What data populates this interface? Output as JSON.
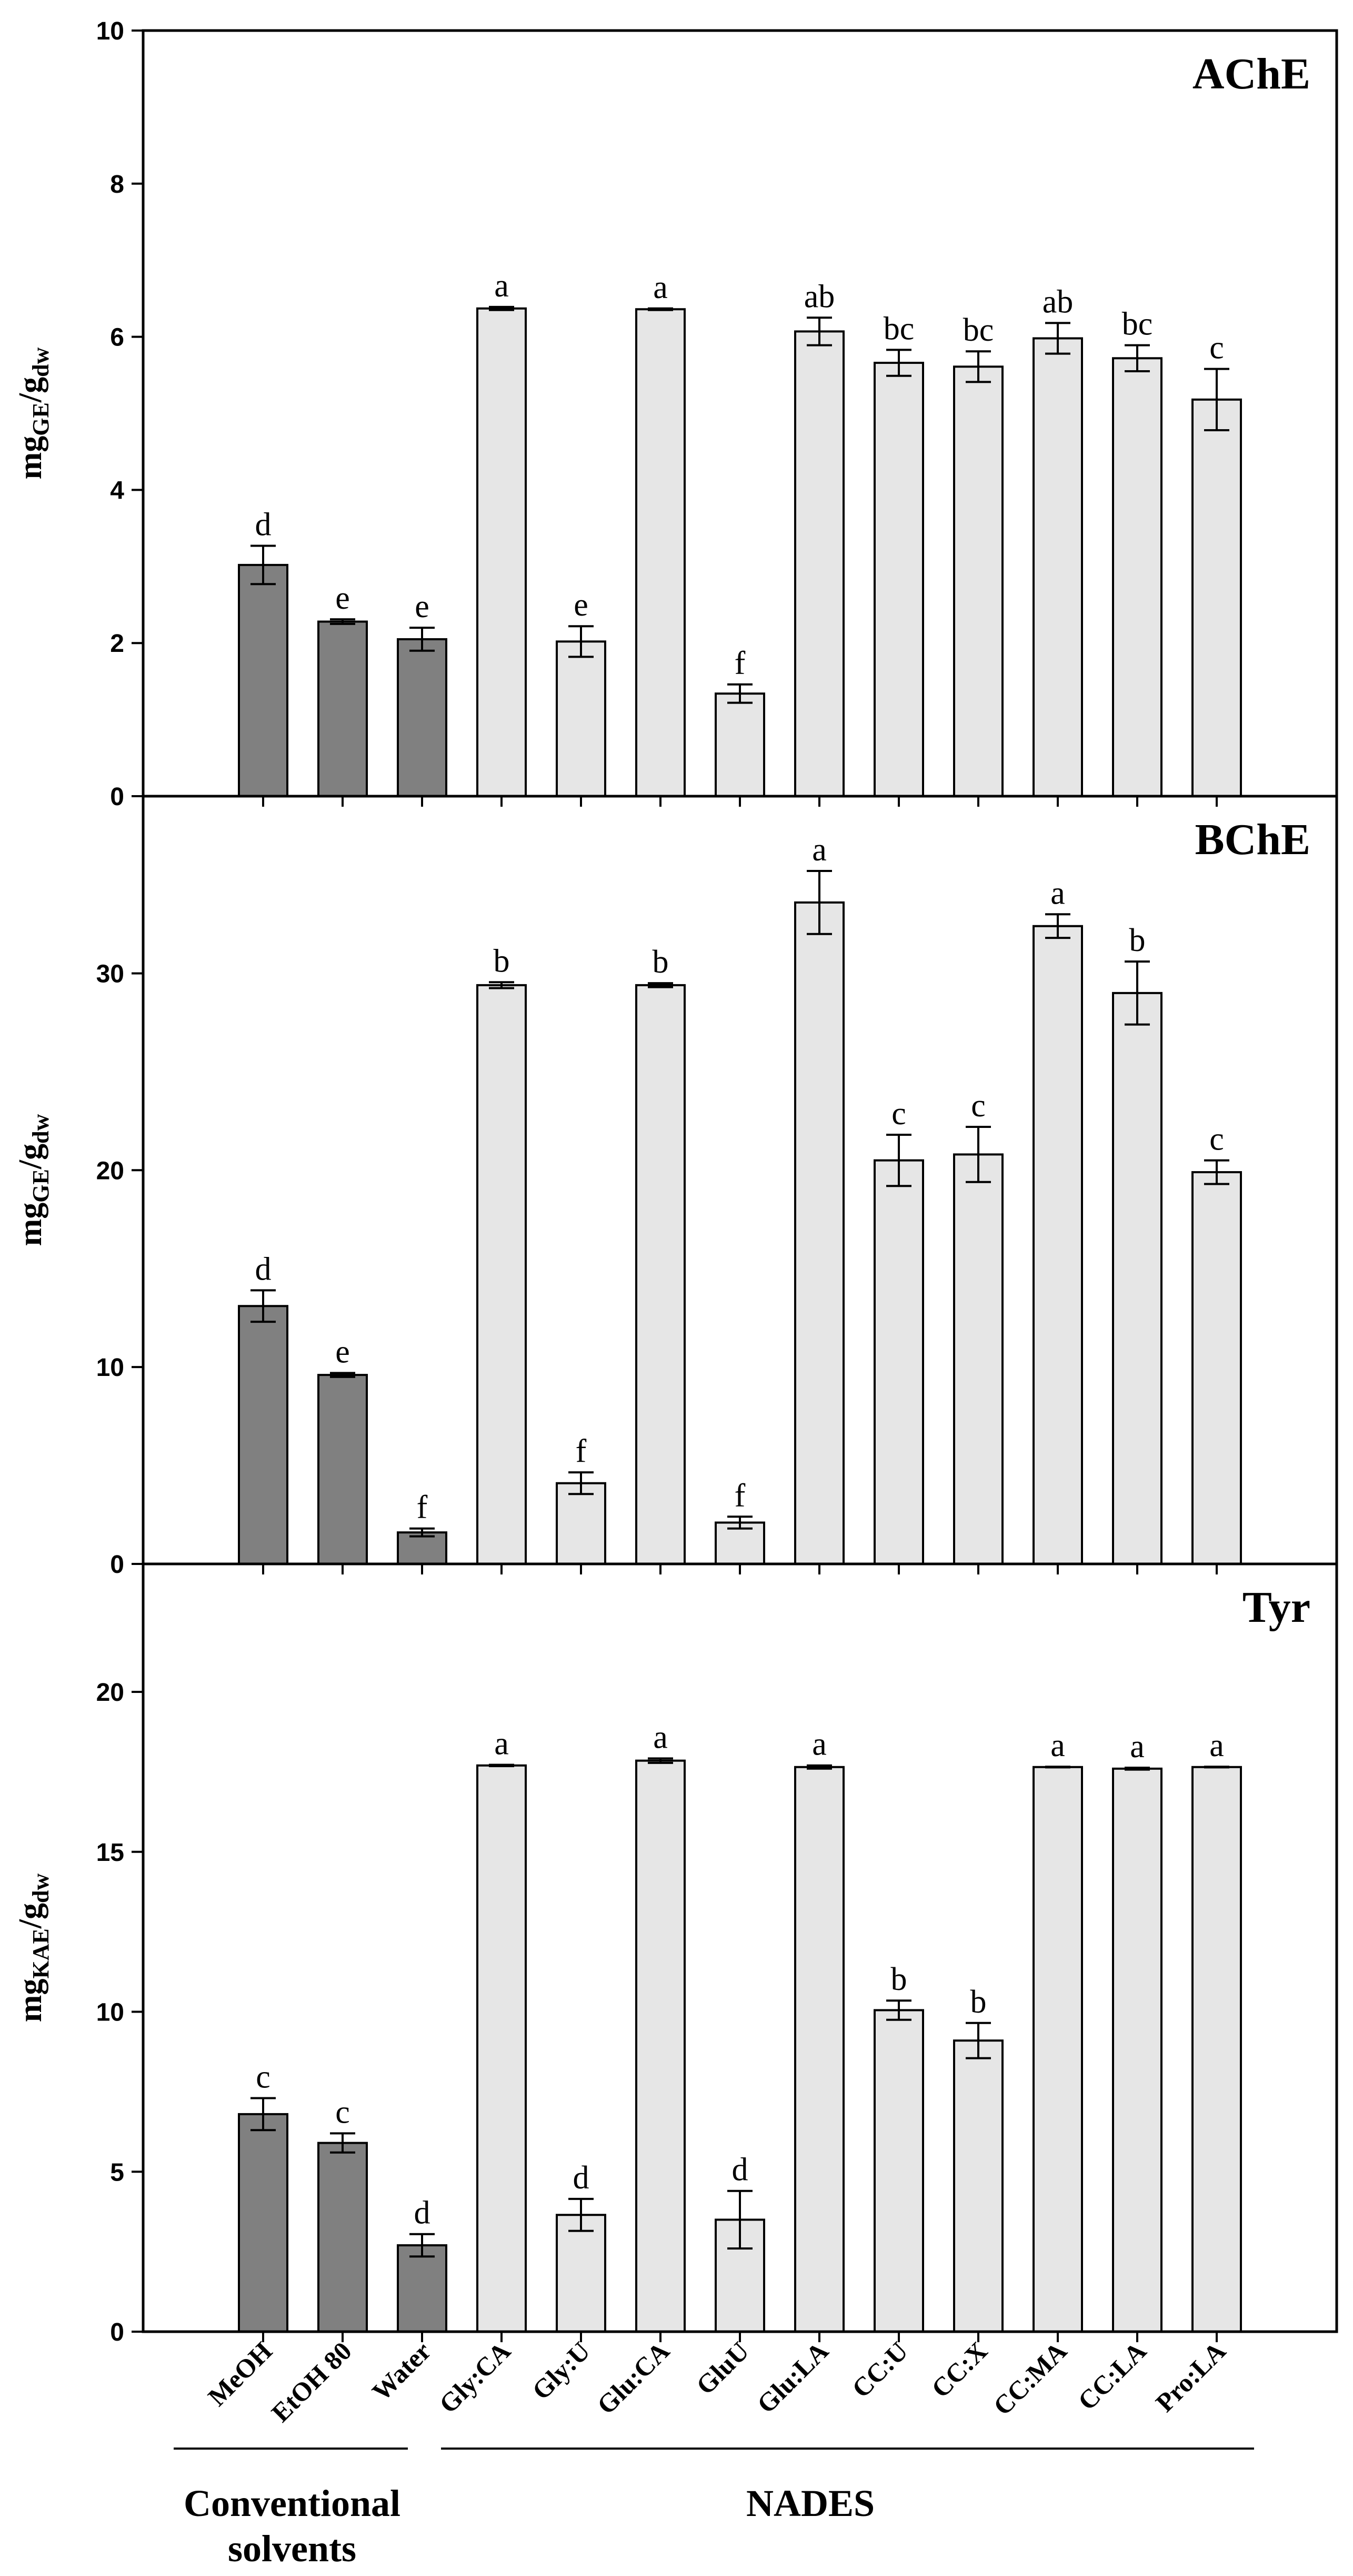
{
  "chart_data": [
    {
      "type": "bar",
      "title": "AChE",
      "ylabel": {
        "main": "mg",
        "sub1": "GE",
        "mid": "/g",
        "sub2": "dw"
      },
      "ylim": [
        0,
        10
      ],
      "yticks": [
        0,
        2,
        4,
        6,
        8,
        10
      ],
      "categories": [
        "MeOH",
        "EtOH 80",
        "Water",
        "Gly:CA",
        "Gly:U",
        "Glu:CA",
        "GluU",
        "Glu:LA",
        "CC:U",
        "CC:X",
        "CC:MA",
        "CC:LA",
        "Pro:LA"
      ],
      "values": [
        3.02,
        2.28,
        2.05,
        6.37,
        2.02,
        6.36,
        1.34,
        6.07,
        5.66,
        5.61,
        5.98,
        5.72,
        5.18
      ],
      "errors": [
        0.25,
        0.03,
        0.15,
        0.02,
        0.2,
        0.01,
        0.12,
        0.18,
        0.17,
        0.2,
        0.2,
        0.17,
        0.4
      ],
      "labels": [
        "d",
        "e",
        "e",
        "a",
        "e",
        "a",
        "f",
        "ab",
        "bc",
        "bc",
        "ab",
        "bc",
        "c"
      ]
    },
    {
      "type": "bar",
      "title": "BChE",
      "ylabel": {
        "main": "mg",
        "sub1": "GE",
        "mid": "/g",
        "sub2": "dw"
      },
      "ylim": [
        0,
        39
      ],
      "yticks": [
        0,
        10,
        20,
        30
      ],
      "categories": [
        "MeOH",
        "EtOH 80",
        "Water",
        "Gly:CA",
        "Gly:U",
        "Glu:CA",
        "GluU",
        "Glu:LA",
        "CC:U",
        "CC:X",
        "CC:MA",
        "CC:LA",
        "Pro:LA"
      ],
      "values": [
        13.1,
        9.6,
        1.6,
        29.4,
        4.1,
        29.4,
        2.1,
        33.6,
        20.5,
        20.8,
        32.4,
        29.0,
        19.9
      ],
      "errors": [
        0.8,
        0.1,
        0.2,
        0.15,
        0.55,
        0.1,
        0.3,
        1.6,
        1.3,
        1.4,
        0.6,
        1.6,
        0.6
      ],
      "labels": [
        "d",
        "e",
        "f",
        "b",
        "f",
        "b",
        "f",
        "a",
        "c",
        "c",
        "a",
        "b",
        "c"
      ]
    },
    {
      "type": "bar",
      "title": "Tyr",
      "ylabel": {
        "main": "mg",
        "sub1": "KAE",
        "mid": "/g",
        "sub2": "dw"
      },
      "ylim": [
        0,
        24
      ],
      "yticks": [
        0,
        5,
        10,
        15,
        20
      ],
      "categories": [
        "MeOH",
        "EtOH 80",
        "Water",
        "Gly:CA",
        "Gly:U",
        "Glu:CA",
        "GluU",
        "Glu:LA",
        "CC:U",
        "CC:X",
        "CC:MA",
        "CC:LA",
        "Pro:LA"
      ],
      "values": [
        6.8,
        5.9,
        2.7,
        17.7,
        3.65,
        17.85,
        3.5,
        17.65,
        10.05,
        9.1,
        17.65,
        17.6,
        17.65
      ],
      "errors": [
        0.5,
        0.3,
        0.35,
        0.02,
        0.5,
        0.07,
        0.9,
        0.05,
        0.3,
        0.55,
        0.01,
        0.03,
        0.01
      ],
      "labels": [
        "c",
        "c",
        "d",
        "a",
        "d",
        "a",
        "d",
        "a",
        "b",
        "b",
        "a",
        "a",
        "a"
      ]
    }
  ],
  "groups": [
    {
      "name": "Conventional solvents",
      "line1": "Conventional",
      "line2": "solvents",
      "count": 3
    },
    {
      "name": "NADES",
      "line1": "NADES",
      "line2": "",
      "count": 10
    }
  ],
  "colors": {
    "conventional": "#808080",
    "nades": "#e6e6e6",
    "stroke": "#000000"
  }
}
